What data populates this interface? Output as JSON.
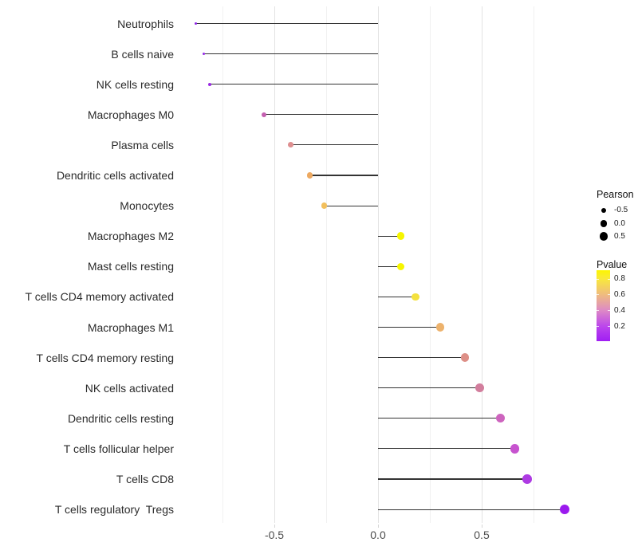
{
  "chart_data": {
    "type": "lollipop",
    "orientation": "horizontal",
    "title": "",
    "xlabel": "",
    "ylabel": "",
    "xlim": [
      -0.98,
      0.97
    ],
    "grid": "vertical major and minor gridlines only, light gray, white background",
    "legend_position": "right",
    "x_axis": {
      "major_ticks": [
        {
          "value": -0.5,
          "label": "-0.5"
        },
        {
          "value": 0.0,
          "label": "0.0"
        },
        {
          "value": 0.5,
          "label": "0.5"
        }
      ],
      "minor_ticks": [
        -0.75,
        -0.25,
        0.25,
        0.75
      ]
    },
    "encoding": {
      "x": "Pearson correlation",
      "dot_size": "Pearson",
      "dot_color": "Pvalue (yellow = high p, purple = low p)"
    },
    "points": [
      {
        "category": "Neutrophils",
        "pearson": -0.88,
        "color": "#8E26E5"
      },
      {
        "category": "B cells naive",
        "pearson": -0.84,
        "color": "#9328E6"
      },
      {
        "category": "NK cells resting",
        "pearson": -0.81,
        "color": "#9B2BE3"
      },
      {
        "category": "Macrophages M0",
        "pearson": -0.55,
        "color": "#C45FB0"
      },
      {
        "category": "Plasma cells",
        "pearson": -0.42,
        "color": "#DE8F90"
      },
      {
        "category": "Dendritic cells activated",
        "pearson": -0.33,
        "color": "#EDA961"
      },
      {
        "category": "Monocytes",
        "pearson": -0.26,
        "color": "#F2BF5C"
      },
      {
        "category": "Macrophages M2",
        "pearson": 0.11,
        "color": "#F6F500"
      },
      {
        "category": "Mast cells resting",
        "pearson": 0.11,
        "color": "#F6F500"
      },
      {
        "category": "T cells CD4 memory activated",
        "pearson": 0.18,
        "color": "#F4E13E"
      },
      {
        "category": "Macrophages M1",
        "pearson": 0.3,
        "color": "#EDB26C"
      },
      {
        "category": "T cells CD4 memory resting",
        "pearson": 0.42,
        "color": "#DD8F87"
      },
      {
        "category": "NK cells activated",
        "pearson": 0.49,
        "color": "#D27E9D"
      },
      {
        "category": "Dendritic cells resting",
        "pearson": 0.59,
        "color": "#CD64BE"
      },
      {
        "category": "T cells follicular helper",
        "pearson": 0.66,
        "color": "#C753CF"
      },
      {
        "category": "T cells CD8",
        "pearson": 0.72,
        "color": "#AE3BE3"
      },
      {
        "category": "T cells regulatory  Tregs",
        "pearson": 0.9,
        "color": "#9B1AEE"
      }
    ]
  },
  "legend": {
    "size_legend": {
      "title": "Pearson",
      "dot_color": "#000000",
      "items": [
        {
          "label": "-0.5",
          "value": -0.5
        },
        {
          "label": "0.0",
          "value": 0.0
        },
        {
          "label": "0.5",
          "value": 0.5
        }
      ]
    },
    "color_legend": {
      "title": "Pvalue",
      "tick_labels": [
        "0.8",
        "0.6",
        "0.4",
        "0.2"
      ],
      "gradient_top_to_bottom": [
        "#FCF500",
        "#F9E93B",
        "#EFBC7E",
        "#DE8BC4",
        "#BC46EC",
        "#A01EF3"
      ]
    }
  },
  "colors": {
    "stem_line": "#333333",
    "grid_major": "#E3E3E3",
    "grid_minor": "#F1F1F1",
    "axis_text": "#4D4D4D",
    "category_text": "#2B2B2B",
    "background": "#FFFFFF"
  }
}
